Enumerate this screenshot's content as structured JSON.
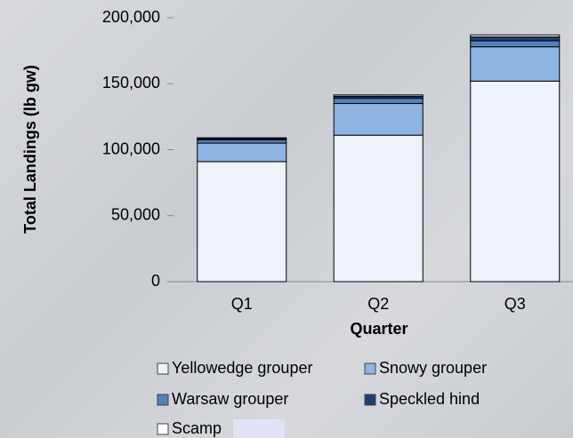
{
  "chart_data": {
    "type": "stacked_bar",
    "x_label": "Quarter",
    "y_label": "Total Landings (lb gw)",
    "categories": [
      "Q1",
      "Q2",
      "Q3"
    ],
    "series": [
      {
        "name": "Yellowedge grouper",
        "color": "#eef2fa",
        "values": [
          91000,
          111000,
          152000
        ]
      },
      {
        "name": "Snowy grouper",
        "color": "#8db4e2",
        "values": [
          14000,
          24000,
          26000
        ]
      },
      {
        "name": "Warsaw grouper",
        "color": "#4f81bd",
        "values": [
          2500,
          4000,
          4500
        ]
      },
      {
        "name": "Speckled hind",
        "color": "#1f3f70",
        "values": [
          1000,
          1500,
          3000
        ]
      },
      {
        "name": "Scamp",
        "color": "#ffffff",
        "values": [
          500,
          1000,
          1500
        ]
      }
    ],
    "ylim": [
      0,
      200000
    ],
    "yticks": [
      0,
      {
        "value": 50000,
        "label": "50,000"
      },
      {
        "value": 100000,
        "label": "100,000"
      },
      {
        "value": 150000,
        "label": "150,000"
      },
      {
        "value": 200000,
        "label": "200,000"
      }
    ]
  }
}
